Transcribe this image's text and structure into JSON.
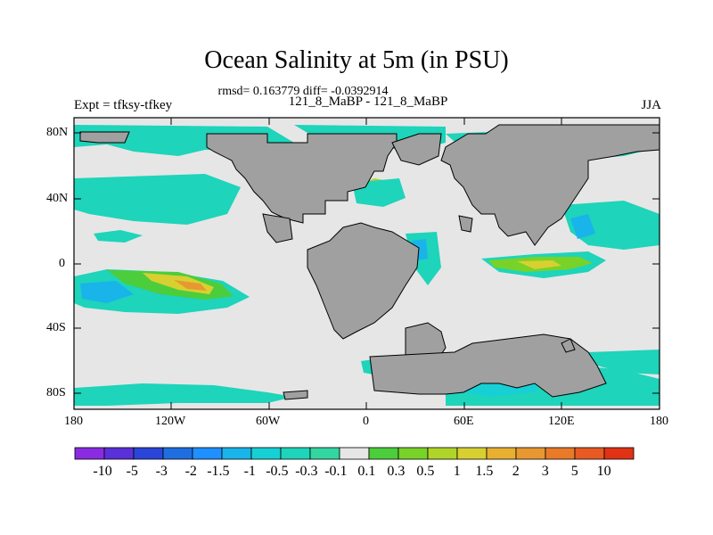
{
  "header": {
    "title": "Ocean Salinity at 5m (in PSU)",
    "stats": "rmsd= 0.163779 diff= -0.0392914",
    "experiment": "Expt = tfksy-tfkey",
    "runs": "121_8_MaBP - 121_8_MaBP",
    "season": "JJA"
  },
  "axes": {
    "lat_labels": [
      "80N",
      "40N",
      "0",
      "40S",
      "80S"
    ],
    "lon_labels": [
      "180",
      "120W",
      "60W",
      "0",
      "60E",
      "120E",
      "180"
    ]
  },
  "colorbar": {
    "labels": [
      "-10",
      "-5",
      "-3",
      "-2",
      "-1.5",
      "-1",
      "-0.5",
      "-0.3",
      "-0.1",
      "0.1",
      "0.3",
      "0.5",
      "1",
      "1.5",
      "2",
      "3",
      "5",
      "10"
    ],
    "colors": [
      "#8a2be2",
      "#5a30d8",
      "#2a45d8",
      "#1e6ee0",
      "#1e90ff",
      "#19b4ea",
      "#16d0d6",
      "#1ed4ba",
      "#33d6a0",
      "#e6e6e6",
      "#4ccd3c",
      "#78d228",
      "#b0d428",
      "#d8d030",
      "#e8b030",
      "#e89830",
      "#e87a28",
      "#e85a24",
      "#e03214"
    ]
  },
  "map": {
    "background": "#e6e6e6",
    "land_color": "#a0a0a0"
  }
}
